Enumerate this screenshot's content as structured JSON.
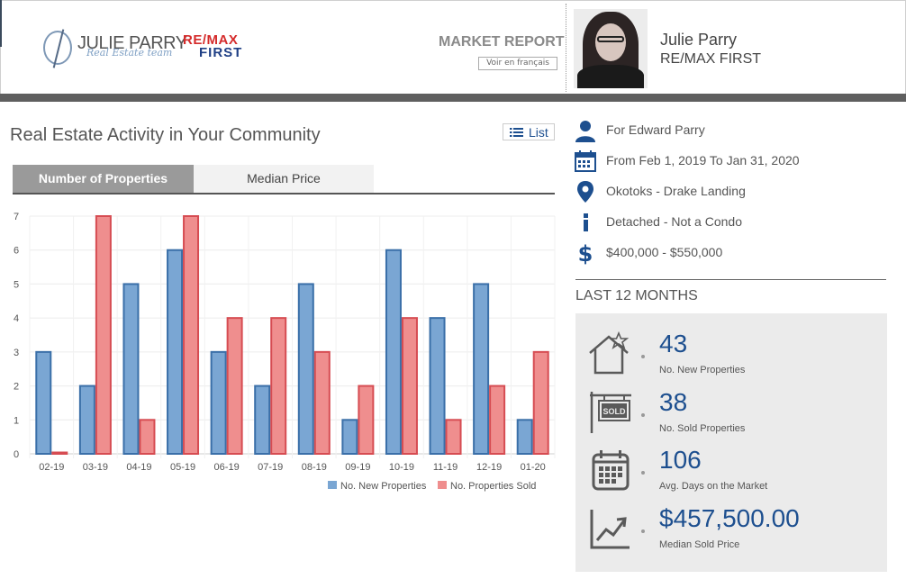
{
  "header": {
    "logo_name": "JULIE PARRY",
    "logo_script": "Real Estate team",
    "brand_line1": "RE/MAX",
    "brand_line2": "FIRST",
    "report_title": "MARKET REPORT",
    "language_button": "Voir en français",
    "agent_name": "Julie Parry",
    "agent_company": "RE/MAX FIRST"
  },
  "section": {
    "title": "Real Estate Activity in Your Community",
    "list_button": "List"
  },
  "tabs": [
    {
      "label": "Number of Properties",
      "active": true
    },
    {
      "label": "Median Price",
      "active": false
    }
  ],
  "filters": [
    {
      "icon": "user-icon",
      "text": "For Edward Parry"
    },
    {
      "icon": "calendar-icon",
      "text": "From Feb 1, 2019 To Jan 31, 2020"
    },
    {
      "icon": "map-pin-icon",
      "text": "Okotoks - Drake Landing"
    },
    {
      "icon": "info-icon",
      "text": "Detached - Not a Condo"
    },
    {
      "icon": "dollar-icon",
      "text": "$400,000 - $550,000"
    }
  ],
  "last12": {
    "title": "LAST 12 MONTHS",
    "stats": [
      {
        "icon": "house-star-icon",
        "value": "43",
        "label": "No. New Properties"
      },
      {
        "icon": "sold-sign-icon",
        "value": "38",
        "label": "No. Sold Properties"
      },
      {
        "icon": "calendar-grid-icon",
        "value": "106",
        "label": "Avg. Days on the Market"
      },
      {
        "icon": "trend-chart-icon",
        "value": "$457,500.00",
        "label": "Median Sold Price"
      }
    ]
  },
  "colors": {
    "accent_blue": "#1d4f8f",
    "series_new": "#7aa6d3",
    "series_new_border": "#3a6fa8",
    "series_sold": "#ef8e8e",
    "series_sold_border": "#d64c52"
  },
  "chart_data": {
    "type": "bar",
    "categories": [
      "02-19",
      "03-19",
      "04-19",
      "05-19",
      "06-19",
      "07-19",
      "08-19",
      "09-19",
      "10-19",
      "11-19",
      "12-19",
      "01-20"
    ],
    "series": [
      {
        "name": "No. New Properties",
        "values": [
          3,
          2,
          5,
          6,
          3,
          2,
          5,
          1,
          6,
          4,
          5,
          1
        ]
      },
      {
        "name": "No. Properties Sold",
        "values": [
          0,
          7,
          1,
          7,
          4,
          4,
          3,
          2,
          4,
          1,
          2,
          3
        ]
      }
    ],
    "yticks": [
      "0",
      "1",
      "2",
      "3",
      "4",
      "5",
      "6",
      "7"
    ],
    "ylim": [
      0,
      7
    ],
    "grid": true,
    "legend_position": "bottom-right"
  }
}
